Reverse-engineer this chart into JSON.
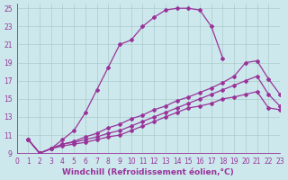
{
  "xlabel": "Windchill (Refroidissement éolien,°C)",
  "background_color": "#cce8ec",
  "line_color": "#993399",
  "grid_color": "#aacccc",
  "xlim": [
    0,
    23
  ],
  "ylim": [
    9,
    25.5
  ],
  "xticks": [
    0,
    1,
    2,
    3,
    4,
    5,
    6,
    7,
    8,
    9,
    10,
    11,
    12,
    13,
    14,
    15,
    16,
    17,
    18,
    19,
    20,
    21,
    22,
    23
  ],
  "yticks": [
    9,
    11,
    13,
    15,
    17,
    19,
    21,
    23,
    25
  ],
  "line1_x": [
    1,
    2,
    3,
    4,
    5,
    6,
    7,
    8,
    9,
    10,
    11,
    12,
    13,
    14,
    15,
    16,
    17,
    18
  ],
  "line1_y": [
    10.5,
    9.0,
    9.5,
    10.5,
    11.5,
    13.5,
    16.0,
    18.5,
    21.0,
    21.5,
    23.0,
    24.0,
    24.8,
    25.0,
    25.0,
    24.8,
    23.0,
    19.5
  ],
  "line2_x": [
    1,
    2,
    3,
    4,
    5,
    6,
    7,
    8,
    9,
    10,
    11,
    12,
    13,
    14,
    15,
    16,
    17,
    18,
    19,
    20,
    21,
    22,
    23
  ],
  "line2_y": [
    10.5,
    9.0,
    9.5,
    10.0,
    10.3,
    10.8,
    11.2,
    11.8,
    12.2,
    12.8,
    13.2,
    13.8,
    14.2,
    14.8,
    15.2,
    15.7,
    16.2,
    16.8,
    17.5,
    19.0,
    19.2,
    17.2,
    15.5
  ],
  "line3_x": [
    1,
    2,
    3,
    4,
    5,
    6,
    7,
    8,
    9,
    10,
    11,
    12,
    13,
    14,
    15,
    16,
    17,
    18,
    19,
    20,
    21,
    22,
    23
  ],
  "line3_y": [
    10.5,
    9.0,
    9.5,
    10.0,
    10.2,
    10.5,
    10.8,
    11.2,
    11.5,
    12.0,
    12.5,
    13.0,
    13.5,
    14.0,
    14.5,
    15.0,
    15.5,
    16.0,
    16.5,
    17.0,
    17.5,
    15.5,
    14.2
  ],
  "line4_x": [
    1,
    2,
    3,
    4,
    5,
    6,
    7,
    8,
    9,
    10,
    11,
    12,
    13,
    14,
    15,
    16,
    17,
    18,
    19,
    20,
    21,
    22,
    23
  ],
  "line4_y": [
    10.5,
    9.0,
    9.5,
    9.8,
    10.0,
    10.2,
    10.5,
    10.8,
    11.0,
    11.5,
    12.0,
    12.5,
    13.0,
    13.5,
    14.0,
    14.2,
    14.5,
    15.0,
    15.2,
    15.5,
    15.8,
    14.0,
    13.8
  ],
  "marker": "D",
  "marker_size": 2,
  "linewidth": 0.9,
  "tick_label_color": "#993399",
  "tick_label_fontsize": 5.5,
  "xlabel_fontsize": 6.5,
  "xlabel_fontweight": "bold"
}
